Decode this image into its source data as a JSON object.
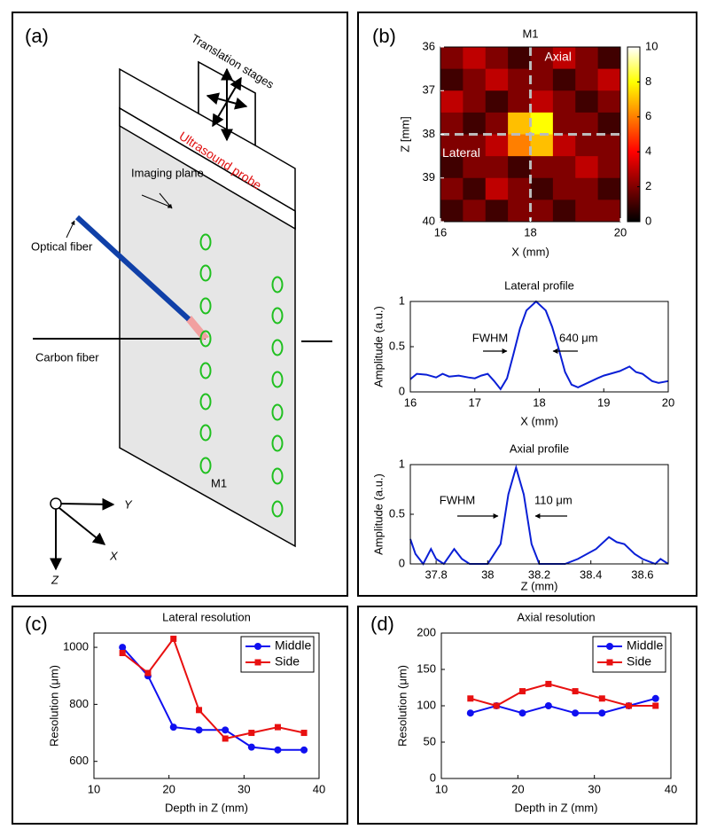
{
  "diagram": {
    "panel_label": "(a)",
    "stage_label": "Translation stages",
    "probe_label": "Ultrasound probe",
    "plane_label": "Imaging plane",
    "optical_fiber_label": "Optical fiber",
    "carbon_fiber_label": "Carbon fiber",
    "target_label": "M1",
    "axis_y": "Y",
    "axis_x": "X",
    "axis_z": "Z"
  },
  "chart_data": [
    {
      "type": "heatmap",
      "panel_label": "(b)",
      "title": "M1",
      "xlabel": "X (mm)",
      "ylabel": "Z [mm]",
      "x": [
        16.25,
        16.75,
        17.25,
        17.75,
        18.25,
        18.75,
        19.25,
        19.75
      ],
      "y": [
        36.25,
        36.75,
        37.25,
        37.75,
        38.25,
        38.75,
        39.25,
        39.75
      ],
      "values": [
        [
          2,
          3,
          2,
          1,
          2,
          3,
          2,
          1
        ],
        [
          1,
          2,
          3,
          2,
          2,
          1,
          2,
          3
        ],
        [
          3,
          2,
          1,
          2,
          3,
          2,
          1,
          2
        ],
        [
          2,
          1,
          2,
          7,
          8,
          2,
          2,
          1
        ],
        [
          2,
          2,
          3,
          6,
          7,
          3,
          2,
          2
        ],
        [
          1,
          2,
          2,
          1,
          2,
          2,
          3,
          2
        ],
        [
          2,
          1,
          3,
          2,
          1,
          2,
          2,
          1
        ],
        [
          1,
          2,
          1,
          2,
          2,
          1,
          2,
          2
        ]
      ],
      "xlim": [
        16,
        20
      ],
      "xticks": [
        16,
        18,
        20
      ],
      "ylim": [
        40,
        36
      ],
      "yticks": [
        36,
        37,
        38,
        39,
        40
      ],
      "colormap": "hot",
      "clim": [
        0,
        10
      ],
      "cticks": [
        0,
        2,
        4,
        6,
        8,
        10
      ],
      "vline": 18,
      "hline": 38,
      "annotations": [
        "Axial",
        "Lateral"
      ]
    },
    {
      "type": "line",
      "title": "Lateral profile",
      "xlabel": "X (mm)",
      "ylabel": "Amplitude (a.u.)",
      "color": "#0a1fd6",
      "x": [
        16,
        16.1,
        16.25,
        16.4,
        16.5,
        16.6,
        16.75,
        16.9,
        17,
        17.1,
        17.2,
        17.3,
        17.4,
        17.5,
        17.6,
        17.7,
        17.8,
        17.95,
        18.1,
        18.2,
        18.3,
        18.4,
        18.5,
        18.6,
        18.75,
        18.9,
        19,
        19.1,
        19.25,
        19.4,
        19.5,
        19.6,
        19.75,
        19.85,
        20
      ],
      "values": [
        0.14,
        0.2,
        0.19,
        0.16,
        0.2,
        0.17,
        0.18,
        0.16,
        0.15,
        0.18,
        0.2,
        0.12,
        0.03,
        0.15,
        0.42,
        0.7,
        0.9,
        1.0,
        0.9,
        0.72,
        0.48,
        0.22,
        0.08,
        0.05,
        0.1,
        0.15,
        0.18,
        0.2,
        0.23,
        0.28,
        0.22,
        0.2,
        0.12,
        0.1,
        0.12
      ],
      "xlim": [
        16,
        20
      ],
      "xticks": [
        16,
        17,
        18,
        19,
        20
      ],
      "ylim": [
        0,
        1
      ],
      "yticks": [
        0,
        0.5,
        1
      ],
      "annotations": [
        "FWHM",
        "640 μm"
      ]
    },
    {
      "type": "line",
      "title": "Axial profile",
      "xlabel": "Z (mm)",
      "ylabel": "Amplitude (a.u.)",
      "color": "#0a1fd6",
      "x": [
        37.7,
        37.72,
        37.75,
        37.78,
        37.8,
        37.83,
        37.87,
        37.9,
        37.93,
        38,
        38.05,
        38.08,
        38.11,
        38.14,
        38.17,
        38.2,
        38.3,
        38.35,
        38.42,
        38.47,
        38.5,
        38.53,
        38.57,
        38.6,
        38.65,
        38.67,
        38.7
      ],
      "values": [
        0.25,
        0.1,
        0,
        0.15,
        0.05,
        0,
        0.15,
        0.05,
        0,
        0,
        0.2,
        0.7,
        0.97,
        0.7,
        0.2,
        0,
        0,
        0.05,
        0.15,
        0.27,
        0.22,
        0.2,
        0.1,
        0.05,
        0,
        0.05,
        0
      ],
      "xlim": [
        37.7,
        38.7
      ],
      "xticks": [
        37.8,
        38,
        38.2,
        38.4,
        38.6
      ],
      "ylim": [
        0,
        1
      ],
      "yticks": [
        0,
        0.5,
        1
      ],
      "annotations": [
        "FWHM",
        "110 μm"
      ]
    },
    {
      "type": "line",
      "panel_label": "(c)",
      "title": "Lateral resolution",
      "xlabel": "Depth in Z (mm)",
      "ylabel": "Resolution (μm)",
      "x": [
        13.8,
        17.2,
        20.6,
        24,
        27.5,
        31,
        34.5,
        38
      ],
      "series": [
        {
          "name": "Middle",
          "color": "#1010f0",
          "marker": "circle",
          "values": [
            1000,
            900,
            720,
            710,
            710,
            650,
            640,
            640
          ]
        },
        {
          "name": "Side",
          "color": "#e81010",
          "marker": "square",
          "values": [
            980,
            910,
            1030,
            780,
            680,
            700,
            720,
            700
          ]
        }
      ],
      "xlim": [
        10,
        40
      ],
      "xticks": [
        10,
        20,
        30,
        40
      ],
      "ylim": [
        540,
        1050
      ],
      "yticks": [
        600,
        800,
        1000
      ],
      "legend": "upper right"
    },
    {
      "type": "line",
      "panel_label": "(d)",
      "title": "Axial resolution",
      "xlabel": "Depth in Z (mm)",
      "ylabel": "Resolution (μm)",
      "x": [
        13.8,
        17.2,
        20.6,
        24,
        27.5,
        31,
        34.5,
        38
      ],
      "series": [
        {
          "name": "Middle",
          "color": "#1010f0",
          "marker": "circle",
          "values": [
            90,
            100,
            90,
            100,
            90,
            90,
            100,
            110
          ]
        },
        {
          "name": "Side",
          "color": "#e81010",
          "marker": "square",
          "values": [
            110,
            100,
            120,
            130,
            120,
            110,
            100,
            100
          ]
        }
      ],
      "xlim": [
        10,
        40
      ],
      "xticks": [
        10,
        20,
        30,
        40
      ],
      "ylim": [
        0,
        200
      ],
      "yticks": [
        0,
        50,
        100,
        150,
        200
      ],
      "legend": "upper right"
    }
  ]
}
